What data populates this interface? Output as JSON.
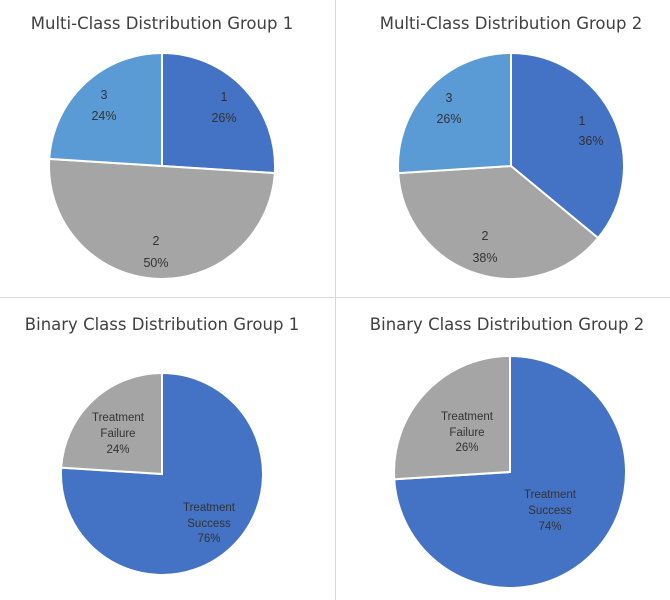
{
  "colors": {
    "blue_dark": "#4472c4",
    "blue_light": "#5b9bd5",
    "gray": "#a5a5a5",
    "divider": "#d9d9d9"
  },
  "chart_data": [
    {
      "type": "pie",
      "title": "Multi-Class Distribution Group 1",
      "slices": [
        {
          "label": "1",
          "value": 26,
          "display": "26%",
          "color": "#4472c4"
        },
        {
          "label": "2",
          "value": 50,
          "display": "50%",
          "color": "#a5a5a5"
        },
        {
          "label": "3",
          "value": 24,
          "display": "24%",
          "color": "#5b9bd5"
        }
      ]
    },
    {
      "type": "pie",
      "title": "Multi-Class Distribution Group 2",
      "slices": [
        {
          "label": "1",
          "value": 36,
          "display": "36%",
          "color": "#4472c4"
        },
        {
          "label": "2",
          "value": 38,
          "display": "38%",
          "color": "#a5a5a5"
        },
        {
          "label": "3",
          "value": 26,
          "display": "26%",
          "color": "#5b9bd5"
        }
      ]
    },
    {
      "type": "pie",
      "title": "Binary Class Distribution Group 1",
      "slices": [
        {
          "label": "Treatment Success",
          "value": 76,
          "display": "76%",
          "color": "#4472c4"
        },
        {
          "label": "Treatment Failure",
          "value": 24,
          "display": "24%",
          "color": "#a5a5a5"
        }
      ]
    },
    {
      "type": "pie",
      "title": "Binary Class Distribution Group 2",
      "slices": [
        {
          "label": "Treatment Success",
          "value": 74,
          "display": "74%",
          "color": "#4472c4"
        },
        {
          "label": "Treatment Failure",
          "value": 26,
          "display": "26%",
          "color": "#a5a5a5"
        }
      ]
    }
  ]
}
